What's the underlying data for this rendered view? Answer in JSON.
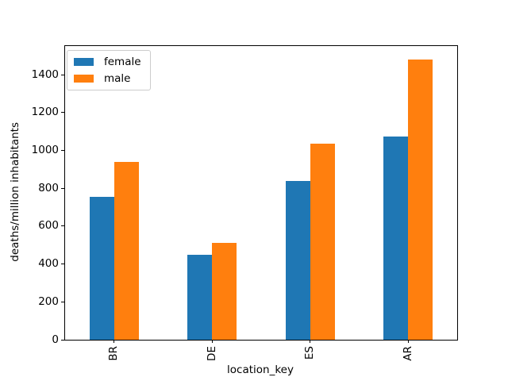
{
  "chart_data": {
    "type": "bar",
    "categories": [
      "BR",
      "DE",
      "ES",
      "AR"
    ],
    "series": [
      {
        "name": "female",
        "color": "#1f77b4",
        "values": [
          755,
          450,
          840,
          1075
        ]
      },
      {
        "name": "male",
        "color": "#ff7f0e",
        "values": [
          940,
          510,
          1035,
          1480
        ]
      }
    ],
    "title": "",
    "xlabel": "location_key",
    "ylabel": "deaths/million inhabitants",
    "yticks": [
      0,
      200,
      400,
      600,
      800,
      1000,
      1200,
      1400
    ],
    "ylim": [
      0,
      1552
    ],
    "grid": false,
    "legend_position": "upper left",
    "x_tick_rotation": 90,
    "bar_group_width_fraction": 0.5,
    "background_color": "#ffffff",
    "spine_color": "#000000"
  }
}
